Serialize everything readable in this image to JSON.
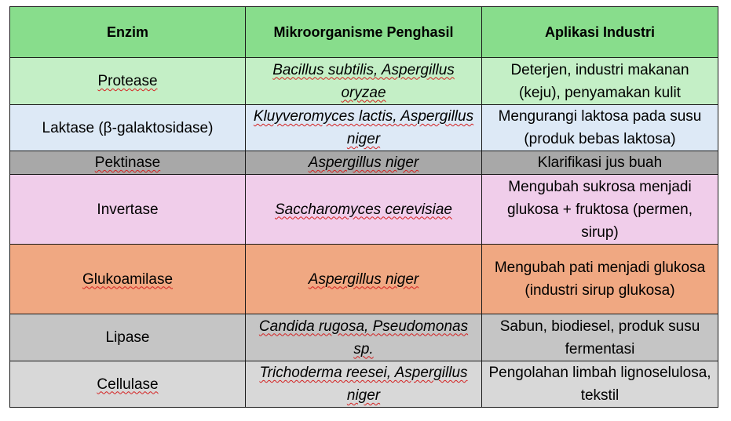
{
  "table": {
    "headers": [
      "Enzim",
      "Mikroorganisme Penghasil",
      "Aplikasi Industri"
    ],
    "rows": [
      {
        "enzim": "Protease",
        "mikro": "Bacillus subtilis, Aspergillus oryzae",
        "aplikasi": "Deterjen, industri makanan (keju), penyamakan kulit",
        "bg": "#c4efc6"
      },
      {
        "enzim": "Laktase (β-galaktosidase)",
        "mikro": "Kluyveromyces lactis, Aspergillus niger",
        "aplikasi": "Mengurangi laktosa pada susu (produk bebas laktosa)",
        "bg": "#dde9f6"
      },
      {
        "enzim": "Pektinase",
        "mikro": "Aspergillus niger",
        "aplikasi": "Klarifikasi jus buah",
        "bg": "#a8a8a8"
      },
      {
        "enzim": "Invertase",
        "mikro": "Saccharomyces cerevisiae",
        "aplikasi": "Mengubah sukrosa menjadi glukosa + fruktosa (permen, sirup)",
        "bg": "#f0cdea"
      },
      {
        "enzim": "Glukoamilase",
        "mikro": "Aspergillus niger",
        "aplikasi": "Mengubah pati menjadi glukosa (industri sirup glukosa)",
        "bg": "#f0a882"
      },
      {
        "enzim": "Lipase",
        "mikro": "Candida rugosa, Pseudomonas sp.",
        "aplikasi": "Sabun, biodiesel, produk susu fermentasi",
        "bg": "#c5c5c5"
      },
      {
        "enzim": "Cellulase",
        "mikro": "Trichoderma reesei, Aspergillus niger",
        "aplikasi": "Pengolahan limbah lignoselulosa, tekstil",
        "bg": "#d8d8d8"
      }
    ]
  },
  "colors": {
    "header_bg": "#88dd8c",
    "border": "#1a1a1a",
    "spellcheck_underline": "#d42020"
  }
}
